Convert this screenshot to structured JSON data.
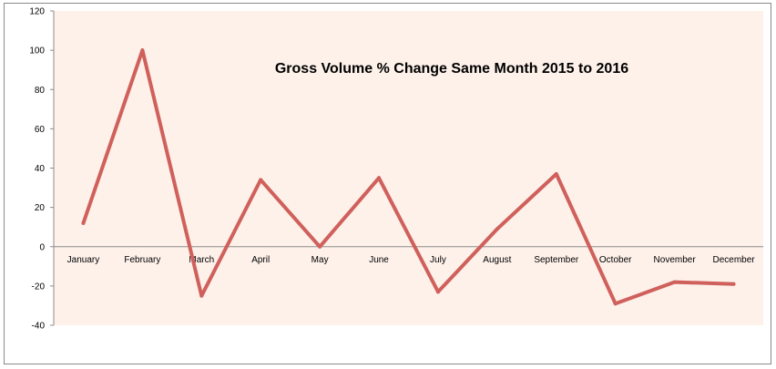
{
  "chart_data": {
    "type": "line",
    "title": "Gross Volume % Change Same Month 2015 to 2016",
    "xlabel": "",
    "ylabel": "",
    "categories": [
      "January",
      "February",
      "March",
      "April",
      "May",
      "June",
      "July",
      "August",
      "September",
      "October",
      "November",
      "December"
    ],
    "series": [
      {
        "values": [
          12,
          100,
          -25,
          34,
          0,
          35,
          -23,
          9,
          37,
          -29,
          -18,
          -19
        ],
        "color": "#d0605b"
      }
    ],
    "ylim": [
      -40,
      120
    ],
    "yticks": [
      "120",
      "100",
      "80",
      "60",
      "40",
      "20",
      "0",
      "-20",
      "-40"
    ],
    "grid": false,
    "plot_background": "#fdf1ea",
    "legend": "none"
  }
}
